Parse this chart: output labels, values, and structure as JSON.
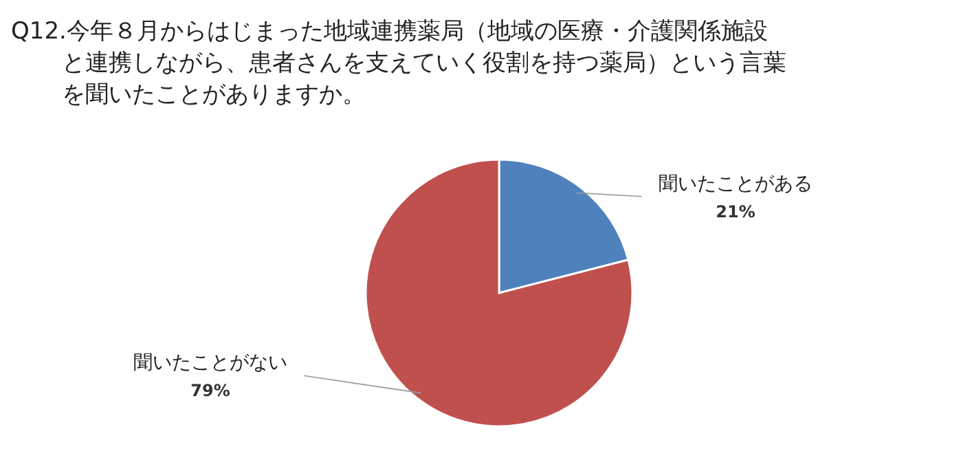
{
  "chart_data": {
    "type": "pie",
    "title": "Q12.今年８月からはじまった地域連携薬局（地域の医療・介護関係施設と連携しながら、患者さんを支えていく役割を持つ薬局）という言葉を聞いたことがありますか。",
    "categories": [
      "聞いたことがある",
      "聞いたことがない"
    ],
    "values": [
      21,
      79
    ],
    "colors": [
      "#4f81bd",
      "#c0504d"
    ],
    "value_labels": [
      "21%",
      "79%"
    ]
  }
}
